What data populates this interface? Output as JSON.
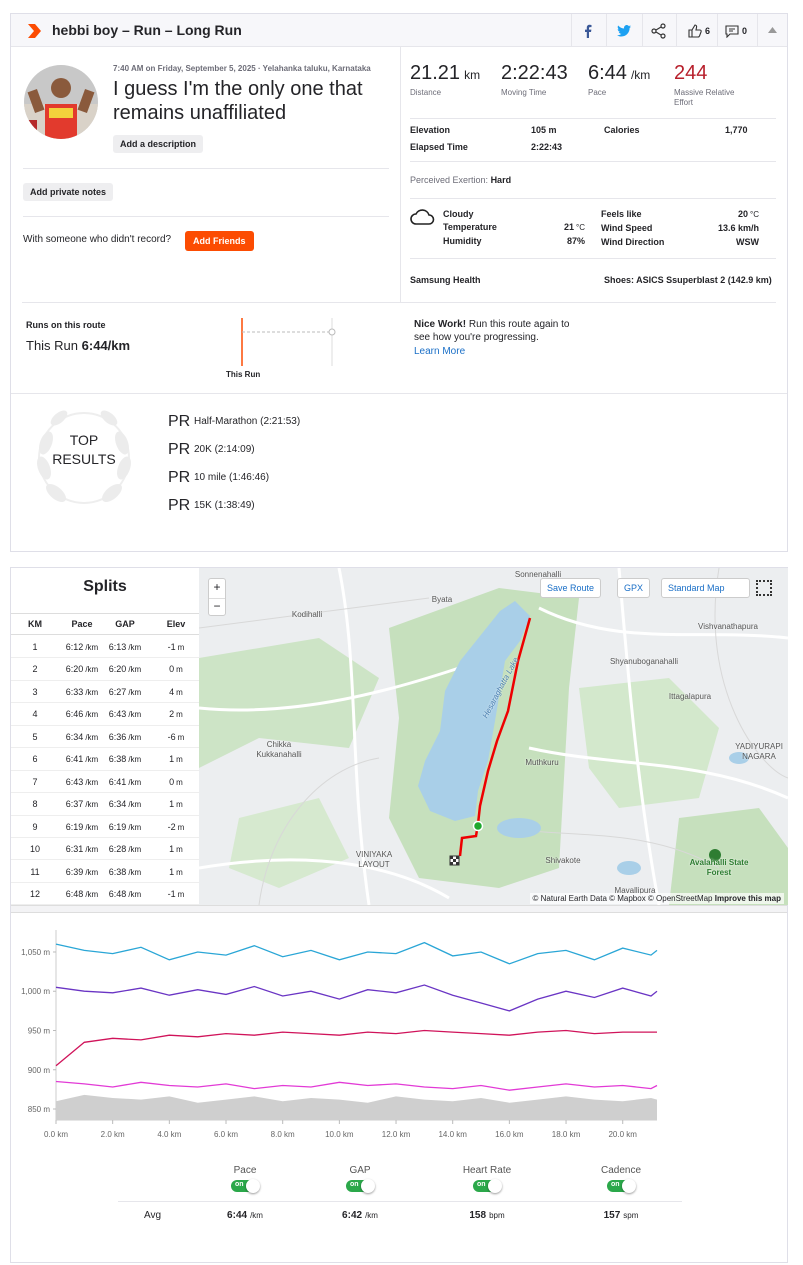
{
  "header": {
    "title": "hebbi boy – Run – Long Run",
    "kudos": "6",
    "comments": "0"
  },
  "activity": {
    "meta": "7:40 AM on Friday, September 5, 2025 · Yelahanka taluku, Karnataka",
    "name": "I guess I'm the only one that remains unaffiliated",
    "add_description": "Add a description",
    "add_private_notes": "Add private notes",
    "with_someone": "With someone who didn't record?",
    "add_friends": "Add Friends"
  },
  "stats": {
    "primary": [
      {
        "value": "21.21",
        "unit": "km",
        "label": "Distance"
      },
      {
        "value": "2:22:43",
        "label": "Moving Time"
      },
      {
        "value": "6:44",
        "unit": "/km",
        "label": "Pace"
      },
      {
        "value": "244",
        "label": "Massive Relative Effort"
      }
    ],
    "details": [
      {
        "label": "Elevation",
        "value": "105 m"
      },
      {
        "label": "Calories",
        "value": "1,770"
      },
      {
        "label": "Elapsed Time",
        "value": "2:22:43"
      }
    ],
    "exertion_label": "Perceived Exertion:",
    "exertion": "Hard",
    "weather": {
      "condition": "Cloudy",
      "left": [
        {
          "label": "Temperature",
          "value": "21",
          "unit": "°C"
        },
        {
          "label": "Humidity",
          "value": "87%"
        }
      ],
      "right": [
        {
          "label": "Feels like",
          "value": "20",
          "unit": "°C"
        },
        {
          "label": "Wind Speed",
          "value": "13.6 km/h"
        },
        {
          "label": "Wind Direction",
          "value": "WSW"
        }
      ]
    },
    "device": "Samsung Health",
    "shoes": "Shoes: ASICS Ssuperblast 2 (142.9 km)"
  },
  "route": {
    "title": "Runs on this route",
    "this_run": "This Run",
    "pace": "6:44/km",
    "marker": "This Run",
    "nice": "Nice Work!",
    "nice_text": "Run this route again to see how you're progressing.",
    "learn_more": "Learn More"
  },
  "top_results": {
    "title_line1": "TOP",
    "title_line2": "RESULTS",
    "badge": "PR",
    "items": [
      {
        "name": "Half-Marathon",
        "time": "(2:21:53)"
      },
      {
        "name": "20K",
        "time": "(2:14:09)"
      },
      {
        "name": "10 mile",
        "time": "(1:46:46)"
      },
      {
        "name": "15K",
        "time": "(1:38:49)"
      }
    ]
  },
  "splits": {
    "title": "Splits",
    "columns": [
      "KM",
      "Pace",
      "GAP",
      "Elev"
    ],
    "pace_unit": "/km",
    "elev_unit": "m",
    "rows": [
      [
        "1",
        "6:12",
        "6:13",
        "-1"
      ],
      [
        "2",
        "6:20",
        "6:20",
        "0"
      ],
      [
        "3",
        "6:33",
        "6:27",
        "4"
      ],
      [
        "4",
        "6:46",
        "6:43",
        "2"
      ],
      [
        "5",
        "6:34",
        "6:36",
        "-6"
      ],
      [
        "6",
        "6:41",
        "6:38",
        "1"
      ],
      [
        "7",
        "6:43",
        "6:41",
        "0"
      ],
      [
        "8",
        "6:37",
        "6:34",
        "1"
      ],
      [
        "9",
        "6:19",
        "6:19",
        "-2"
      ],
      [
        "10",
        "6:31",
        "6:28",
        "1"
      ],
      [
        "11",
        "6:39",
        "6:38",
        "1"
      ],
      [
        "12",
        "6:48",
        "6:48",
        "-1"
      ]
    ]
  },
  "map": {
    "zoom_in": "+",
    "zoom_out": "−",
    "save_route": "Save Route",
    "gpx": "GPX",
    "style": "Standard Map",
    "labels": [
      "Sonnenahalli",
      "Byata",
      "Kodihalli",
      "Vishvanathapura",
      "Shyanuboganahalli",
      "Hesaraghatta Lake",
      "Ittagalapura",
      "Chikka Kukkanahalli",
      "Muthkuru",
      "YADIYURAPI NAGARA",
      "VINIYAKA LAYOUT",
      "Shivakote",
      "Avalahalli State Forest",
      "Mavallipura"
    ],
    "attribution": "© Natural Earth Data © Mapbox © OpenStreetMap",
    "improve": "Improve this map"
  },
  "chart_data": {
    "type": "line",
    "x": [
      0,
      1,
      2,
      3,
      4,
      5,
      6,
      7,
      8,
      9,
      10,
      11,
      12,
      13,
      14,
      15,
      16,
      17,
      18,
      19,
      20,
      21,
      21.21
    ],
    "xlim": [
      0,
      21.21
    ],
    "ylim": [
      836,
      1078
    ],
    "xticks": [
      {
        "value": 0,
        "label": "0.0 km"
      },
      {
        "value": 2,
        "label": "2.0 km"
      },
      {
        "value": 4,
        "label": "4.0 km"
      },
      {
        "value": 6,
        "label": "6.0 km"
      },
      {
        "value": 8,
        "label": "8.0 km"
      },
      {
        "value": 10,
        "label": "10.0 km"
      },
      {
        "value": 12,
        "label": "12.0 km"
      },
      {
        "value": 14,
        "label": "14.0 km"
      },
      {
        "value": 16,
        "label": "16.0 km"
      },
      {
        "value": 18,
        "label": "18.0 km"
      },
      {
        "value": 20,
        "label": "20.0 km"
      }
    ],
    "yticks": [
      {
        "value": 850,
        "label": "850 m"
      },
      {
        "value": 900,
        "label": "900 m"
      },
      {
        "value": 950,
        "label": "950 m"
      },
      {
        "value": 1000,
        "label": "1,000 m"
      },
      {
        "value": 1050,
        "label": "1,050 m"
      }
    ],
    "series": [
      {
        "name": "Pace",
        "color": "#2aa6d6",
        "values": [
          1060,
          1052,
          1048,
          1056,
          1040,
          1050,
          1046,
          1058,
          1044,
          1052,
          1040,
          1050,
          1048,
          1062,
          1045,
          1050,
          1035,
          1048,
          1052,
          1040,
          1055,
          1046,
          1052
        ]
      },
      {
        "name": "GAP",
        "color": "#6a35c4",
        "values": [
          1005,
          1000,
          998,
          1004,
          995,
          1002,
          996,
          1006,
          994,
          1000,
          990,
          1002,
          998,
          1008,
          995,
          985,
          975,
          990,
          1000,
          992,
          1004,
          994,
          1000
        ]
      },
      {
        "name": "Heart Rate",
        "color": "#d0135a",
        "values": [
          905,
          935,
          940,
          938,
          944,
          942,
          946,
          944,
          948,
          946,
          944,
          948,
          946,
          950,
          948,
          946,
          944,
          948,
          950,
          946,
          948,
          948,
          948
        ]
      },
      {
        "name": "Cadence",
        "color": "#e23ad6",
        "values": [
          885,
          882,
          878,
          884,
          880,
          878,
          882,
          876,
          880,
          878,
          884,
          880,
          882,
          878,
          876,
          880,
          874,
          878,
          882,
          878,
          880,
          876,
          880
        ]
      },
      {
        "color": "#cfcfcf",
        "area": true,
        "values": [
          860,
          868,
          864,
          862,
          866,
          858,
          862,
          866,
          860,
          864,
          862,
          858,
          866,
          862,
          860,
          864,
          858,
          862,
          866,
          862,
          860,
          864,
          862
        ]
      }
    ]
  },
  "summary": {
    "toggle": "on",
    "row_label": "Avg",
    "averages": [
      {
        "value": "6:44",
        "unit": "/km"
      },
      {
        "value": "6:42",
        "unit": "/km"
      },
      {
        "value": "158",
        "unit": "bpm"
      },
      {
        "value": "157",
        "unit": "spm"
      }
    ]
  }
}
